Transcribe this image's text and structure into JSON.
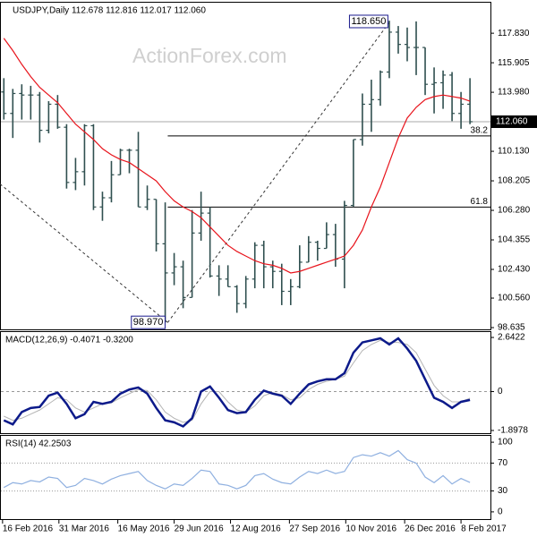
{
  "chart_data": {
    "type": "ohlc",
    "x": [
      "2016-02-15",
      "2016-02-22",
      "2016-02-29",
      "2016-03-07",
      "2016-03-14",
      "2016-03-21",
      "2016-03-28",
      "2016-04-04",
      "2016-04-11",
      "2016-04-18",
      "2016-04-25",
      "2016-05-02",
      "2016-05-09",
      "2016-05-16",
      "2016-05-23",
      "2016-05-30",
      "2016-06-06",
      "2016-06-13",
      "2016-06-20",
      "2016-06-27",
      "2016-07-04",
      "2016-07-11",
      "2016-07-18",
      "2016-07-25",
      "2016-08-01",
      "2016-08-08",
      "2016-08-15",
      "2016-08-22",
      "2016-08-29",
      "2016-09-05",
      "2016-09-12",
      "2016-09-19",
      "2016-09-26",
      "2016-10-03",
      "2016-10-10",
      "2016-10-17",
      "2016-10-24",
      "2016-10-31",
      "2016-11-07",
      "2016-11-14",
      "2016-11-21",
      "2016-11-28",
      "2016-12-05",
      "2016-12-12",
      "2016-12-19",
      "2016-12-26",
      "2017-01-02",
      "2017-01-09",
      "2017-01-16",
      "2017-01-23",
      "2017-01-30",
      "2017-02-06",
      "2017-02-13"
    ],
    "xlim": [
      "2016-02-14",
      "2017-03-03"
    ],
    "xticks": [
      {
        "value": "2016-02-16",
        "label": "16 Feb 2016"
      },
      {
        "value": "2016-03-31",
        "label": "31 Mar 2016"
      },
      {
        "value": "2016-05-16",
        "label": "16 May 2016"
      },
      {
        "value": "2016-06-29",
        "label": "29 Jun 2016"
      },
      {
        "value": "2016-08-12",
        "label": "12 Aug 2016"
      },
      {
        "value": "2016-09-27",
        "label": "27 Sep 2016"
      },
      {
        "value": "2016-11-10",
        "label": "10 Nov 2016"
      },
      {
        "value": "2016-12-26",
        "label": "26 Dec 2016"
      },
      {
        "value": "2017-02-08",
        "label": "8 Feb 2017"
      }
    ],
    "price": {
      "title": "USDJPY,Daily  112.678 112.816 112.017 112.060",
      "watermark": "ActionForex.com",
      "color": "#2f4f4f",
      "open": [
        114.0,
        112.6,
        113.9,
        113.8,
        113.8,
        111.5,
        113.2,
        111.7,
        108.1,
        108.8,
        111.8,
        106.5,
        107.1,
        108.6,
        110.2,
        110.2,
        106.5,
        107.0,
        104.1,
        102.2,
        102.6,
        100.6,
        104.8,
        106.1,
        102.0,
        101.8,
        101.3,
        100.2,
        101.8,
        104.0,
        102.6,
        102.3,
        101.0,
        101.3,
        102.9,
        104.2,
        103.8,
        104.7,
        103.1,
        106.6,
        110.9,
        113.2,
        113.5,
        115.3,
        117.9,
        117.1,
        116.9,
        116.9,
        114.5,
        114.6,
        115.1,
        112.6,
        113.2
      ],
      "high": [
        114.9,
        114.2,
        114.5,
        114.4,
        114.0,
        113.4,
        113.8,
        111.9,
        109.7,
        111.9,
        111.9,
        107.5,
        109.5,
        110.3,
        110.3,
        111.4,
        107.9,
        107.0,
        106.8,
        103.5,
        103.0,
        106.3,
        107.5,
        106.5,
        102.7,
        102.7,
        101.4,
        102.0,
        104.2,
        104.3,
        103.0,
        102.8,
        101.8,
        104.0,
        104.6,
        104.3,
        105.5,
        105.4,
        106.9,
        110.9,
        113.9,
        114.8,
        115.4,
        118.65,
        118.3,
        118.2,
        118.6,
        116.9,
        115.6,
        115.4,
        115.3,
        114.0,
        114.9
      ],
      "low": [
        112.2,
        111.0,
        112.2,
        112.2,
        110.7,
        111.3,
        111.6,
        107.7,
        107.6,
        107.9,
        106.3,
        105.6,
        106.8,
        108.6,
        108.7,
        106.5,
        106.3,
        103.6,
        98.97,
        101.4,
        99.9,
        100.6,
        104.3,
        101.9,
        100.7,
        101.3,
        99.6,
        99.9,
        101.2,
        101.2,
        101.2,
        100.1,
        100.1,
        101.2,
        102.9,
        103.0,
        103.8,
        102.6,
        101.2,
        106.5,
        110.5,
        111.4,
        113.1,
        114.9,
        116.5,
        116.0,
        115.1,
        113.8,
        112.6,
        112.9,
        112.1,
        111.6,
        111.9
      ],
      "close": [
        112.6,
        113.9,
        113.8,
        113.8,
        111.5,
        113.2,
        111.7,
        108.1,
        108.8,
        111.8,
        106.5,
        107.1,
        108.6,
        110.2,
        110.2,
        106.5,
        107.0,
        104.1,
        102.2,
        102.6,
        100.6,
        104.8,
        106.1,
        102.0,
        101.8,
        101.3,
        100.2,
        101.8,
        104.0,
        102.6,
        102.3,
        101.0,
        101.3,
        102.9,
        104.2,
        103.8,
        104.7,
        103.1,
        106.6,
        110.9,
        113.2,
        113.5,
        115.3,
        117.9,
        117.1,
        116.9,
        116.9,
        114.5,
        114.6,
        115.1,
        112.6,
        113.2,
        112.06
      ],
      "ma": {
        "color": "#e8141c",
        "values": [
          117.5,
          116.7,
          115.8,
          115.0,
          114.3,
          113.8,
          113.3,
          112.6,
          111.9,
          111.4,
          110.9,
          110.3,
          109.9,
          109.6,
          109.4,
          109.0,
          108.6,
          108.2,
          107.5,
          106.9,
          106.5,
          106.2,
          105.8,
          105.2,
          104.6,
          104.0,
          103.6,
          103.3,
          103.0,
          102.8,
          102.7,
          102.5,
          102.2,
          102.3,
          102.5,
          102.7,
          102.9,
          103.1,
          103.3,
          104.0,
          105.0,
          106.5,
          107.8,
          109.4,
          111.0,
          112.3,
          113.0,
          113.5,
          113.7,
          113.8,
          113.7,
          113.6,
          113.4
        ]
      },
      "ylim": [
        98.52,
        119.88
      ],
      "yticks": [
        98.635,
        {
          "value": 100.56,
          "label": "100.560"
        },
        {
          "value": 102.43,
          "label": "102.430"
        },
        104.355,
        {
          "value": 106.28,
          "label": "106.280"
        },
        108.205,
        {
          "value": 110.13,
          "label": "110.130"
        },
        {
          "value": 113.98,
          "label": "113.980"
        },
        115.905,
        {
          "value": 117.83,
          "label": "117.830"
        }
      ],
      "last": {
        "value": 112.06,
        "label": "112.060"
      },
      "high_point": {
        "x": "2016-12-15",
        "value": 118.65,
        "label": "118.650"
      },
      "low_point": {
        "x": "2016-06-24",
        "value": 98.97,
        "label": "98.970"
      },
      "levels": [
        {
          "value": 111.13,
          "label": "38.2"
        },
        {
          "value": 106.49,
          "label": "61.8"
        }
      ],
      "trendlines": [
        {
          "x": [
            "2016-02-14",
            "2016-06-24"
          ],
          "y": [
            108.0,
            98.97
          ]
        },
        {
          "x": [
            "2016-06-24",
            "2016-12-15"
          ],
          "y": [
            98.97,
            118.65
          ]
        }
      ]
    },
    "macd": {
      "title": "MACD(12,26,9) -0.4071 -0.3200",
      "macd": {
        "color": "#0c1a8a",
        "values": [
          -1.4,
          -1.6,
          -1.0,
          -0.8,
          -0.75,
          -0.2,
          -0.05,
          -0.6,
          -1.3,
          -1.1,
          -0.5,
          -0.6,
          -0.5,
          -0.1,
          0.1,
          0.2,
          -0.1,
          -0.8,
          -1.4,
          -1.5,
          -1.7,
          -1.3,
          0.0,
          0.25,
          -0.3,
          -0.9,
          -1.05,
          -1.0,
          -0.4,
          0.05,
          -0.1,
          -0.2,
          -0.6,
          -0.1,
          0.35,
          0.5,
          0.6,
          0.6,
          0.9,
          1.9,
          2.4,
          2.5,
          2.6,
          2.3,
          2.6,
          2.1,
          1.5,
          0.6,
          -0.3,
          -0.5,
          -0.8,
          -0.5,
          -0.4071
        ]
      },
      "signal": {
        "color": "#b4b4b4",
        "values": [
          -1.2,
          -1.4,
          -1.3,
          -1.1,
          -0.9,
          -0.6,
          -0.3,
          -0.4,
          -0.8,
          -1.0,
          -0.8,
          -0.6,
          -0.55,
          -0.3,
          -0.1,
          0.1,
          0.05,
          -0.4,
          -1.0,
          -1.3,
          -1.5,
          -1.4,
          -0.6,
          0.0,
          0.0,
          -0.5,
          -0.9,
          -1.0,
          -0.7,
          -0.2,
          -0.05,
          -0.15,
          -0.4,
          -0.3,
          0.1,
          0.35,
          0.5,
          0.6,
          0.75,
          1.4,
          2.0,
          2.3,
          2.5,
          2.4,
          2.4,
          2.3,
          1.9,
          1.1,
          0.3,
          -0.2,
          -0.5,
          -0.5,
          -0.32
        ]
      },
      "ylim": [
        -2.03,
        2.95
      ],
      "yticks": [
        2.6422,
        0,
        -1.8978
      ]
    },
    "rsi": {
      "title": "RSI(14) 42.2503",
      "color": "#8fb0e0",
      "values": [
        35,
        42,
        40,
        45,
        43,
        50,
        48,
        35,
        38,
        48,
        45,
        40,
        47,
        52,
        55,
        58,
        45,
        38,
        33,
        40,
        38,
        48,
        60,
        58,
        40,
        38,
        33,
        38,
        52,
        55,
        47,
        42,
        40,
        50,
        58,
        55,
        60,
        55,
        58,
        78,
        82,
        80,
        85,
        80,
        88,
        75,
        70,
        50,
        42,
        52,
        40,
        48,
        42.2503
      ],
      "ylim": [
        -10.4,
        110.4
      ],
      "yticks": [
        100,
        70,
        30,
        0
      ]
    }
  }
}
